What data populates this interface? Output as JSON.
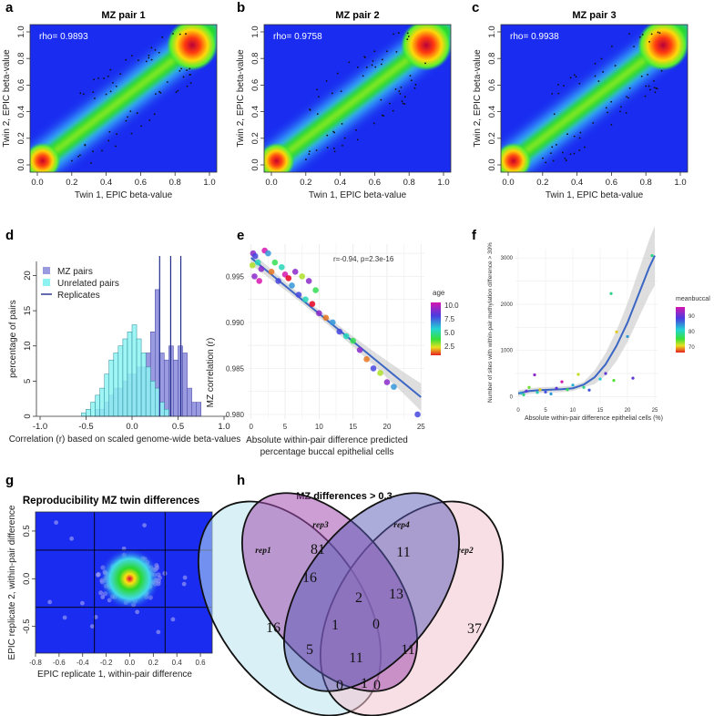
{
  "panels": {
    "a": {
      "letter": "a",
      "title": "MZ pair 1",
      "rho": "rho= 0.9893"
    },
    "b": {
      "letter": "b",
      "title": "MZ pair 2",
      "rho": "rho= 0.9758"
    },
    "c": {
      "letter": "c",
      "title": "MZ pair 3",
      "rho": "rho= 0.9938"
    },
    "d": {
      "letter": "d"
    },
    "e": {
      "letter": "e"
    },
    "f": {
      "letter": "f"
    },
    "g": {
      "letter": "g"
    },
    "h": {
      "letter": "h"
    }
  },
  "colors": {
    "density_low": "#1a2cf0",
    "density_mid": "#22d82a",
    "density_high": "#d4002a",
    "mz_bar": "#9a9ae0",
    "unrelated_bar": "#8ef2f2",
    "replicate_line": "#1f2c8a",
    "fit_line": "#3b66c4",
    "ribbon": "#c8c8c8",
    "venn_rep1": "#b9e3ee",
    "venn_rep3": "#a24fae",
    "venn_rep4": "#5a5ab8",
    "venn_rep2": "#f2c4d0"
  },
  "chart_data": [
    {
      "id": "a",
      "type": "heatmap",
      "title": "MZ pair 1",
      "xlabel": "Twin 1, EPIC beta-value",
      "ylabel": "Twin 2, EPIC beta-value",
      "xlim": [
        0,
        1
      ],
      "ylim": [
        0,
        1
      ],
      "xticks": [
        "0.0",
        "0.2",
        "0.4",
        "0.6",
        "0.8",
        "1.0"
      ],
      "yticks": [
        "0.0",
        "0.2",
        "0.4",
        "0.6",
        "0.8",
        "1.0"
      ],
      "annotation": "rho= 0.9893",
      "density_peaks": [
        [
          0.03,
          0.03
        ],
        [
          0.9,
          0.9
        ]
      ]
    },
    {
      "id": "b",
      "type": "heatmap",
      "title": "MZ pair 2",
      "xlabel": "Twin 1, EPIC beta-value",
      "ylabel": "Twin 2, EPIC beta-value",
      "xlim": [
        0,
        1
      ],
      "ylim": [
        0,
        1
      ],
      "xticks": [
        "0.0",
        "0.2",
        "0.4",
        "0.6",
        "0.8",
        "1.0"
      ],
      "yticks": [
        "0.0",
        "0.2",
        "0.4",
        "0.6",
        "0.8",
        "1.0"
      ],
      "annotation": "rho= 0.9758",
      "density_peaks": [
        [
          0.03,
          0.03
        ],
        [
          0.9,
          0.9
        ]
      ]
    },
    {
      "id": "c",
      "type": "heatmap",
      "title": "MZ pair 3",
      "xlabel": "Twin 1, EPIC beta-value",
      "ylabel": "Twin 2, EPIC beta-value",
      "xlim": [
        0,
        1
      ],
      "ylim": [
        0,
        1
      ],
      "xticks": [
        "0.0",
        "0.2",
        "0.4",
        "0.6",
        "0.8",
        "1.0"
      ],
      "yticks": [
        "0.0",
        "0.2",
        "0.4",
        "0.6",
        "0.8",
        "1.0"
      ],
      "annotation": "rho= 0.9938",
      "density_peaks": [
        [
          0.03,
          0.03
        ],
        [
          0.9,
          0.9
        ]
      ]
    },
    {
      "id": "d",
      "type": "bar",
      "xlabel": "Correlation (r) based on scaled genome-wide beta-values",
      "ylabel": "percentage of pairs",
      "xlim": [
        -1.0,
        1.0
      ],
      "ylim": [
        0,
        22
      ],
      "xticks": [
        "-1.0",
        "-0.5",
        "0.0",
        "0.5",
        "1.0"
      ],
      "yticks": [
        "0",
        "5",
        "10",
        "15",
        "20"
      ],
      "bin_width": 0.05,
      "legend": [
        "MZ pairs",
        "Unrelated pairs",
        "Replicates"
      ],
      "series": [
        {
          "name": "MZ pairs",
          "bins_start": [
            -0.4,
            -0.35,
            -0.3,
            -0.25,
            -0.2,
            -0.15,
            -0.1,
            -0.05,
            0.0,
            0.05,
            0.1,
            0.15,
            0.2,
            0.25,
            0.3,
            0.35,
            0.4,
            0.45,
            0.5,
            0.55,
            0.6,
            0.65,
            0.7
          ],
          "values": [
            1,
            1,
            2,
            3,
            4,
            4,
            5,
            6,
            6,
            7,
            7,
            9,
            12,
            18,
            9,
            8,
            10,
            8,
            10,
            9,
            4,
            2,
            2
          ]
        },
        {
          "name": "Unrelated pairs",
          "bins_start": [
            -0.55,
            -0.5,
            -0.45,
            -0.4,
            -0.35,
            -0.3,
            -0.25,
            -0.2,
            -0.15,
            -0.1,
            -0.05,
            0.0,
            0.05,
            0.1,
            0.15,
            0.2,
            0.25,
            0.3,
            0.35
          ],
          "values": [
            0.5,
            1,
            2,
            3,
            4,
            6,
            8,
            9,
            10,
            11,
            12,
            13,
            11,
            9,
            7,
            5,
            4,
            2,
            1
          ]
        }
      ],
      "replicates": [
        0.3,
        0.42,
        0.53
      ]
    },
    {
      "id": "e",
      "type": "scatter",
      "xlabel": "Absolute within-pair difference predicted percentage buccal epithelial cells",
      "ylabel": "MZ correlation (r)",
      "xlim": [
        -0.5,
        25.5
      ],
      "ylim": [
        0.9795,
        0.9985
      ],
      "xticks": [
        "0",
        "5",
        "10",
        "15",
        "20",
        "25"
      ],
      "yticks": [
        "0.980",
        "0.985",
        "0.990",
        "0.995"
      ],
      "annotation": "r=-0.94, p=2.3e-16",
      "legend_title": "age",
      "legend_ticks": [
        "10.0",
        "7.5",
        "5.0",
        "2.5"
      ],
      "fit": {
        "intercept": 0.997,
        "slope": -0.000605
      },
      "points": [
        [
          0.3,
          0.9975,
          9
        ],
        [
          0.6,
          0.9972,
          8
        ],
        [
          1.0,
          0.9965,
          6
        ],
        [
          0.2,
          0.9962,
          4
        ],
        [
          1.5,
          0.9958,
          9
        ],
        [
          2.0,
          0.9978,
          10
        ],
        [
          2.5,
          0.9975,
          7
        ],
        [
          3,
          0.9955,
          3
        ],
        [
          3.5,
          0.9965,
          5
        ],
        [
          4,
          0.9945,
          8
        ],
        [
          4.5,
          0.996,
          6
        ],
        [
          5,
          0.9952,
          10
        ],
        [
          5.5,
          0.9948,
          2
        ],
        [
          6,
          0.994,
          7
        ],
        [
          6.5,
          0.9955,
          9
        ],
        [
          7,
          0.993,
          8
        ],
        [
          7.5,
          0.995,
          4
        ],
        [
          8,
          0.9925,
          6
        ],
        [
          8.5,
          0.9945,
          9
        ],
        [
          9,
          0.992,
          2
        ],
        [
          9.5,
          0.9935,
          5
        ],
        [
          10,
          0.991,
          9
        ],
        [
          11,
          0.9905,
          3
        ],
        [
          12,
          0.99,
          7
        ],
        [
          13,
          0.989,
          8
        ],
        [
          14,
          0.9885,
          6
        ],
        [
          15,
          0.988,
          5
        ],
        [
          16,
          0.987,
          9
        ],
        [
          17,
          0.986,
          3
        ],
        [
          18,
          0.985,
          8
        ],
        [
          19,
          0.9845,
          4
        ],
        [
          20,
          0.9835,
          9
        ],
        [
          21,
          0.983,
          7
        ],
        [
          24.5,
          0.98,
          8
        ],
        [
          0.5,
          0.995,
          9
        ],
        [
          1.2,
          0.9945,
          10
        ]
      ]
    },
    {
      "id": "f",
      "type": "scatter",
      "xlabel": "Absolute within-pair difference epithelial cells (%)",
      "ylabel": "Number of sites with within-pair methylation difference > 30%",
      "xlim": [
        -0.5,
        25.5
      ],
      "ylim": [
        -150,
        3200
      ],
      "xticks": [
        "0",
        "5",
        "10",
        "15",
        "20",
        "25"
      ],
      "yticks": [
        "0",
        "1000",
        "2000",
        "3000"
      ],
      "legend_title": "meanbuccal",
      "legend_ticks": [
        "90",
        "80",
        "70"
      ],
      "fit_curve": [
        [
          0,
          70
        ],
        [
          2,
          120
        ],
        [
          4,
          140
        ],
        [
          6,
          150
        ],
        [
          8,
          160
        ],
        [
          10,
          180
        ],
        [
          12,
          260
        ],
        [
          14,
          420
        ],
        [
          16,
          700
        ],
        [
          18,
          1100
        ],
        [
          20,
          1600
        ],
        [
          22,
          2200
        ],
        [
          24,
          2800
        ],
        [
          25,
          3050
        ]
      ],
      "points": [
        [
          0.5,
          80,
          85
        ],
        [
          1,
          40,
          80
        ],
        [
          1.5,
          120,
          90
        ],
        [
          2,
          200,
          75
        ],
        [
          3,
          470,
          92
        ],
        [
          3.5,
          90,
          82
        ],
        [
          4,
          150,
          70
        ],
        [
          5,
          100,
          88
        ],
        [
          6,
          60,
          85
        ],
        [
          7,
          180,
          90
        ],
        [
          8,
          320,
          95
        ],
        [
          9,
          150,
          78
        ],
        [
          10,
          250,
          84
        ],
        [
          11,
          480,
          72
        ],
        [
          12,
          200,
          80
        ],
        [
          13,
          140,
          88
        ],
        [
          15,
          380,
          83
        ],
        [
          16,
          500,
          90
        ],
        [
          17,
          2230,
          80
        ],
        [
          17.5,
          350,
          76
        ],
        [
          18,
          1400,
          70
        ],
        [
          20,
          1300,
          85
        ],
        [
          21,
          400,
          90
        ],
        [
          24.5,
          3050,
          80
        ]
      ]
    },
    {
      "id": "g",
      "type": "heatmap",
      "title": "Reproducibility MZ twin differences",
      "xlabel": "EPIC replicate 1, within-pair difference",
      "ylabel": "EPIC replicate 2, within-pair difference",
      "xlim": [
        -0.8,
        0.7
      ],
      "ylim": [
        -0.78,
        0.7
      ],
      "xticks": [
        "-0.8",
        "-0.6",
        "-0.4",
        "-0.2",
        "0.0",
        "0.2",
        "0.4",
        "0.6"
      ],
      "yticks": [
        "-0.5",
        "0.0",
        "0.5"
      ],
      "threshold_lines": [
        -0.3,
        0.3
      ],
      "density_peaks": [
        [
          0.0,
          0.0
        ]
      ]
    },
    {
      "id": "h",
      "type": "venn",
      "title": "MZ differences > 0.3",
      "sets": [
        "rep1",
        "rep3",
        "rep4",
        "rep2"
      ],
      "regions": [
        {
          "sets": [
            "rep1"
          ],
          "value": "16"
        },
        {
          "sets": [
            "rep3"
          ],
          "value": "81"
        },
        {
          "sets": [
            "rep4"
          ],
          "value": "11"
        },
        {
          "sets": [
            "rep2"
          ],
          "value": "37"
        },
        {
          "sets": [
            "rep1",
            "rep3"
          ],
          "value": "16"
        },
        {
          "sets": [
            "rep3",
            "rep4"
          ],
          "value": "2"
        },
        {
          "sets": [
            "rep4",
            "rep2"
          ],
          "value": "13"
        },
        {
          "sets": [
            "rep1",
            "rep3",
            "rep4"
          ],
          "value": "1"
        },
        {
          "sets": [
            "rep3",
            "rep4",
            "rep2"
          ],
          "value": "0"
        },
        {
          "sets": [
            "rep1",
            "rep3",
            "rep4",
            "rep2"
          ],
          "value": "11"
        },
        {
          "sets": [
            "rep1",
            "rep4"
          ],
          "value": "5"
        },
        {
          "sets": [
            "rep3",
            "rep2"
          ],
          "value": "11"
        },
        {
          "sets": [
            "rep1",
            "rep4",
            "rep2"
          ],
          "value": "0"
        },
        {
          "sets": [
            "rep1",
            "rep3",
            "rep2"
          ],
          "value": "0"
        },
        {
          "sets": [
            "rep1",
            "rep2"
          ],
          "value": "1"
        }
      ]
    }
  ]
}
